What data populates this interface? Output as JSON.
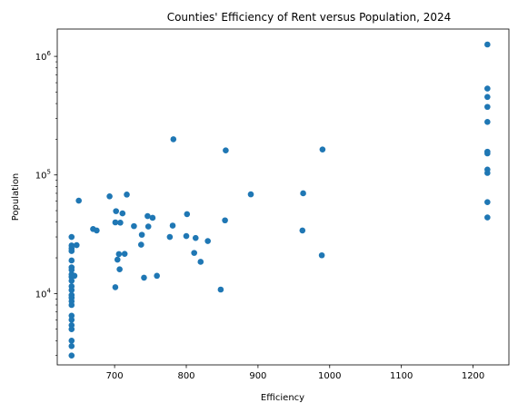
{
  "chart_data": {
    "type": "scatter",
    "title": "Counties' Efficiency of Rent versus Population, 2024",
    "xlabel": "Efficiency",
    "ylabel": "Population",
    "xlim": [
      620,
      1250
    ],
    "ylim": [
      2500,
      1700000
    ],
    "yscale": "log",
    "grid": false,
    "color": "#1f77b4",
    "x_ticks": [
      700,
      800,
      900,
      1000,
      1100,
      1200
    ],
    "x_tick_labels": [
      "700",
      "800",
      "900",
      "1000",
      "1100",
      "1200"
    ],
    "y_ticks": [
      {
        "value": 10000,
        "base": "10",
        "exp": "4"
      },
      {
        "value": 100000,
        "base": "10",
        "exp": "5"
      },
      {
        "value": 1000000,
        "base": "10",
        "exp": "6"
      }
    ],
    "points": [
      {
        "x": 640,
        "y": 3000
      },
      {
        "x": 640,
        "y": 3600
      },
      {
        "x": 640,
        "y": 4000
      },
      {
        "x": 640,
        "y": 5000
      },
      {
        "x": 640,
        "y": 5400
      },
      {
        "x": 640,
        "y": 6000
      },
      {
        "x": 640,
        "y": 6500
      },
      {
        "x": 640,
        "y": 8000
      },
      {
        "x": 640,
        "y": 8600
      },
      {
        "x": 640,
        "y": 9200
      },
      {
        "x": 640,
        "y": 9700
      },
      {
        "x": 640,
        "y": 10700
      },
      {
        "x": 640,
        "y": 11500
      },
      {
        "x": 640,
        "y": 12800
      },
      {
        "x": 640,
        "y": 13800
      },
      {
        "x": 640,
        "y": 14500
      },
      {
        "x": 640,
        "y": 15800
      },
      {
        "x": 640,
        "y": 16600
      },
      {
        "x": 640,
        "y": 19000
      },
      {
        "x": 640,
        "y": 22800
      },
      {
        "x": 640,
        "y": 24000
      },
      {
        "x": 640,
        "y": 25400
      },
      {
        "x": 640,
        "y": 30000
      },
      {
        "x": 644,
        "y": 14100
      },
      {
        "x": 647,
        "y": 25600
      },
      {
        "x": 650,
        "y": 60700
      },
      {
        "x": 670,
        "y": 35000
      },
      {
        "x": 675,
        "y": 34000
      },
      {
        "x": 693,
        "y": 66000
      },
      {
        "x": 701,
        "y": 11300
      },
      {
        "x": 701,
        "y": 39800
      },
      {
        "x": 702,
        "y": 49500
      },
      {
        "x": 704,
        "y": 19300
      },
      {
        "x": 706,
        "y": 21500
      },
      {
        "x": 707,
        "y": 16000
      },
      {
        "x": 708,
        "y": 39600
      },
      {
        "x": 711,
        "y": 47400
      },
      {
        "x": 714,
        "y": 21600
      },
      {
        "x": 717,
        "y": 68300
      },
      {
        "x": 727,
        "y": 37000
      },
      {
        "x": 737,
        "y": 25800
      },
      {
        "x": 738,
        "y": 31300
      },
      {
        "x": 741,
        "y": 13600
      },
      {
        "x": 746,
        "y": 45000
      },
      {
        "x": 747,
        "y": 36700
      },
      {
        "x": 753,
        "y": 43500
      },
      {
        "x": 759,
        "y": 14100
      },
      {
        "x": 777,
        "y": 30000
      },
      {
        "x": 781,
        "y": 37400
      },
      {
        "x": 782,
        "y": 200000
      },
      {
        "x": 800,
        "y": 30500
      },
      {
        "x": 801,
        "y": 46700
      },
      {
        "x": 811,
        "y": 22000
      },
      {
        "x": 813,
        "y": 29400
      },
      {
        "x": 820,
        "y": 18500
      },
      {
        "x": 830,
        "y": 27700
      },
      {
        "x": 848,
        "y": 10800
      },
      {
        "x": 854,
        "y": 41400
      },
      {
        "x": 855,
        "y": 161000
      },
      {
        "x": 890,
        "y": 68600
      },
      {
        "x": 962,
        "y": 34000
      },
      {
        "x": 963,
        "y": 70000
      },
      {
        "x": 989,
        "y": 21000
      },
      {
        "x": 990,
        "y": 164000
      },
      {
        "x": 1220,
        "y": 43800
      },
      {
        "x": 1220,
        "y": 59000
      },
      {
        "x": 1220,
        "y": 104000
      },
      {
        "x": 1220,
        "y": 111000
      },
      {
        "x": 1220,
        "y": 152000
      },
      {
        "x": 1220,
        "y": 157000
      },
      {
        "x": 1220,
        "y": 280000
      },
      {
        "x": 1220,
        "y": 375000
      },
      {
        "x": 1220,
        "y": 455000
      },
      {
        "x": 1220,
        "y": 535000
      },
      {
        "x": 1220,
        "y": 1260000
      }
    ]
  }
}
